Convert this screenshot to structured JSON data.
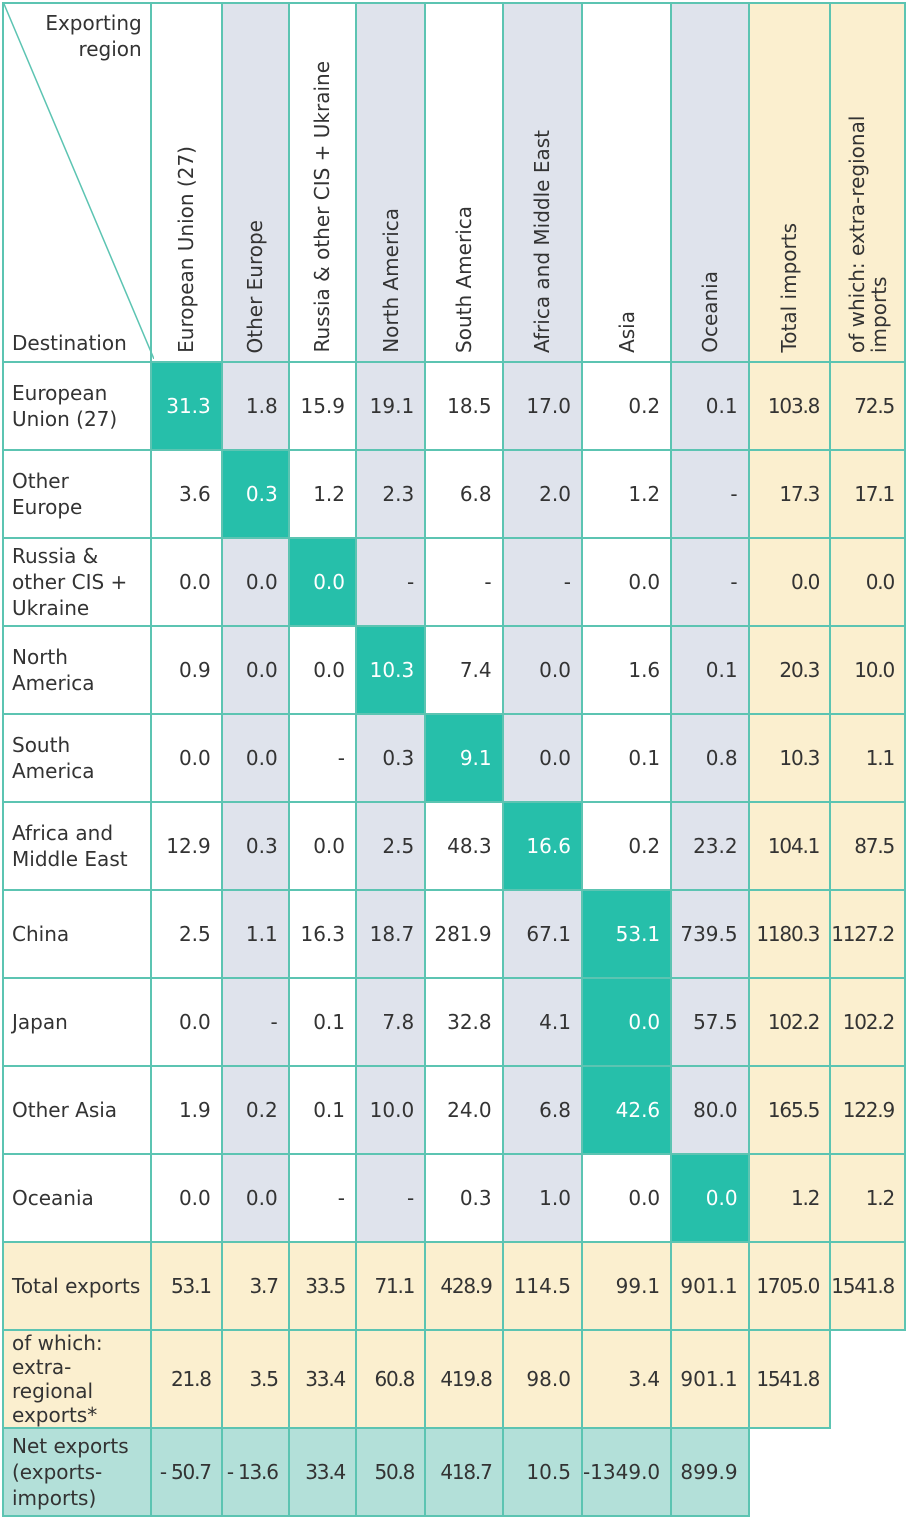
{
  "corner": {
    "exporting": "Exporting region",
    "destination": "Destination"
  },
  "columns": [
    "European Union (27)",
    "Other Europe",
    "Russia & other CIS + Ukraine",
    "North America",
    "South America",
    "Africa and Middle East",
    "Asia",
    "Oceania",
    "Total imports",
    "of which: extra-regional imports"
  ],
  "colors": {
    "teal": "#26bfaa",
    "grey": "#dfe3ec",
    "yellow": "#fbefcf",
    "mint": "#b3e0d9",
    "border": "#5cc4b2"
  },
  "rows": [
    {
      "label": "European Union (27)",
      "values": [
        "31.3",
        "1.8",
        "15.9",
        "19.1",
        "18.5",
        "17.0",
        "0.2",
        "0.1",
        "103.8",
        "72.5"
      ]
    },
    {
      "label": "Other Europe",
      "values": [
        "3.6",
        "0.3",
        "1.2",
        "2.3",
        "6.8",
        "2.0",
        "1.2",
        "-",
        "17.3",
        "17.1"
      ]
    },
    {
      "label": "Russia & other CIS + Ukraine",
      "values": [
        "0.0",
        "0.0",
        "0.0",
        "-",
        "-",
        "-",
        "0.0",
        "-",
        "0.0",
        "0.0"
      ]
    },
    {
      "label": "North America",
      "values": [
        "0.9",
        "0.0",
        "0.0",
        "10.3",
        "7.4",
        "0.0",
        "1.6",
        "0.1",
        "20.3",
        "10.0"
      ]
    },
    {
      "label": "South America",
      "values": [
        "0.0",
        "0.0",
        "-",
        "0.3",
        "9.1",
        "0.0",
        "0.1",
        "0.8",
        "10.3",
        "1.1"
      ]
    },
    {
      "label": "Africa and Middle East",
      "values": [
        "12.9",
        "0.3",
        "0.0",
        "2.5",
        "48.3",
        "16.6",
        "0.2",
        "23.2",
        "104.1",
        "87.5"
      ]
    },
    {
      "label": "China",
      "values": [
        "2.5",
        "1.1",
        "16.3",
        "18.7",
        "281.9",
        "67.1",
        "53.1",
        "739.5",
        "1180.3",
        "1127.2"
      ]
    },
    {
      "label": "Japan",
      "values": [
        "0.0",
        "-",
        "0.1",
        "7.8",
        "32.8",
        "4.1",
        "0.0",
        "57.5",
        "102.2",
        "102.2"
      ]
    },
    {
      "label": "Other Asia",
      "values": [
        "1.9",
        "0.2",
        "0.1",
        "10.0",
        "24.0",
        "6.8",
        "42.6",
        "80.0",
        "165.5",
        "122.9"
      ]
    },
    {
      "label": "Oceania",
      "values": [
        "0.0",
        "0.0",
        "-",
        "-",
        "0.3",
        "1.0",
        "0.0",
        "0.0",
        "1.2",
        "1.2"
      ]
    },
    {
      "label": "Total exports",
      "values": [
        "53.1",
        "3.7",
        "33.5",
        "71.1",
        "428.9",
        "114.5",
        "99.1",
        "901.1",
        "1705.0",
        "1541.8"
      ]
    },
    {
      "label": "of which: extra-regional exports*",
      "values": [
        "21.8",
        "3.5",
        "33.4",
        "60.8",
        "419.8",
        "98.0",
        "3.4",
        "901.1",
        "1541.8"
      ]
    },
    {
      "label": "Net exports (exports-imports)",
      "values": [
        "- 50.7",
        "- 13.6",
        "33.4",
        "50.8",
        "418.7",
        "10.5",
        "-1349.0",
        "899.9"
      ]
    }
  ],
  "chart_data": {
    "type": "table",
    "columns": [
      "European Union (27)",
      "Other Europe",
      "Russia & other CIS + Ukraine",
      "North America",
      "South America",
      "Africa and Middle East",
      "Asia",
      "Oceania",
      "Total imports",
      "of which: extra-regional imports"
    ],
    "row_labels": [
      "European Union (27)",
      "Other Europe",
      "Russia & other CIS + Ukraine",
      "North America",
      "South America",
      "Africa and Middle East",
      "China",
      "Japan",
      "Other Asia",
      "Oceania",
      "Total exports",
      "of which: extra-regional exports*",
      "Net exports (exports-imports)"
    ]
  }
}
